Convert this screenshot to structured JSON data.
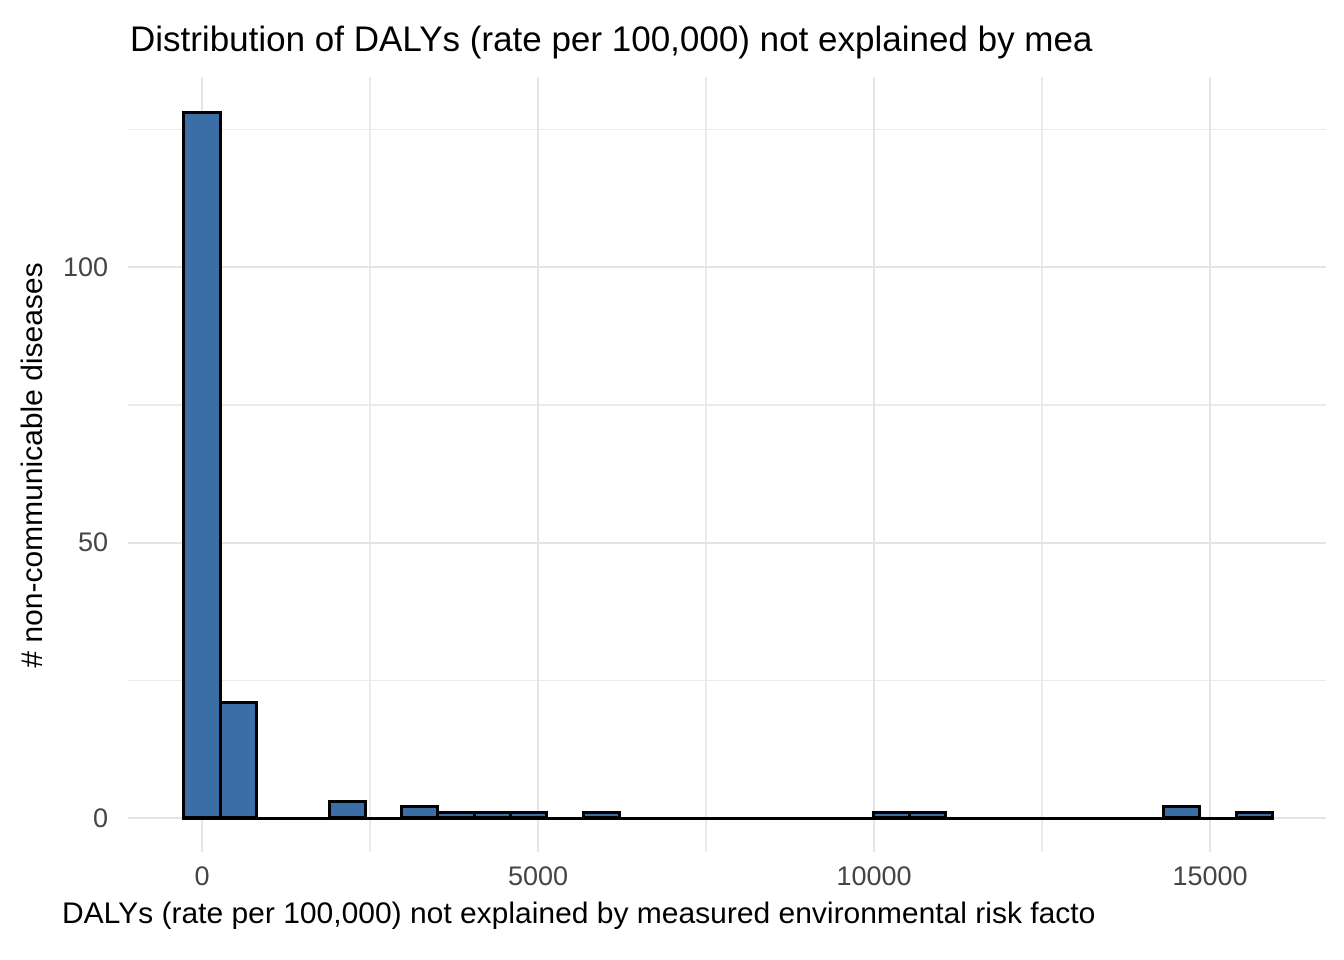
{
  "chart_data": {
    "type": "bar",
    "subtype": "histogram",
    "title": "Distribution of DALYs (rate per 100,000) not explained by mea",
    "xlabel": "DALYs (rate per 100,000) not explained by measured environmental risk facto",
    "ylabel": "# non-communicable diseases",
    "binwidth": 540,
    "bins": [
      {
        "center": 0,
        "count": 128
      },
      {
        "center": 540,
        "count": 21
      },
      {
        "center": 1080,
        "count": 0
      },
      {
        "center": 1620,
        "count": 0
      },
      {
        "center": 2160,
        "count": 3
      },
      {
        "center": 2700,
        "count": 0
      },
      {
        "center": 3240,
        "count": 2
      },
      {
        "center": 3780,
        "count": 1
      },
      {
        "center": 4320,
        "count": 1
      },
      {
        "center": 4860,
        "count": 1
      },
      {
        "center": 5400,
        "count": 0
      },
      {
        "center": 5940,
        "count": 1
      },
      {
        "center": 6480,
        "count": 0
      },
      {
        "center": 7020,
        "count": 0
      },
      {
        "center": 7560,
        "count": 0
      },
      {
        "center": 8100,
        "count": 0
      },
      {
        "center": 8640,
        "count": 0
      },
      {
        "center": 9180,
        "count": 0
      },
      {
        "center": 9720,
        "count": 0
      },
      {
        "center": 10260,
        "count": 1
      },
      {
        "center": 10800,
        "count": 1
      },
      {
        "center": 11340,
        "count": 0
      },
      {
        "center": 11880,
        "count": 0
      },
      {
        "center": 12420,
        "count": 0
      },
      {
        "center": 12960,
        "count": 0
      },
      {
        "center": 13500,
        "count": 0
      },
      {
        "center": 14040,
        "count": 0
      },
      {
        "center": 14580,
        "count": 2
      },
      {
        "center": 15120,
        "count": 0
      },
      {
        "center": 15660,
        "count": 1
      }
    ],
    "x_axis": {
      "tick_values": [
        0,
        5000,
        10000,
        15000
      ],
      "tick_labels": [
        "0",
        "5000",
        "10000",
        "15000"
      ],
      "major_gridlines": [
        0,
        5000,
        10000,
        15000
      ],
      "minor_gridlines": [
        2500,
        7500,
        12500
      ],
      "range_shown": [
        -1100,
        16700
      ]
    },
    "y_axis": {
      "tick_values": [
        0,
        50,
        100
      ],
      "tick_labels": [
        "0",
        "50",
        "100"
      ],
      "major_gridlines": [
        0,
        50,
        100
      ],
      "minor_gridlines": [
        25,
        75,
        125
      ],
      "range_shown": [
        -6,
        134.5
      ]
    },
    "legend": "none",
    "grid": "on",
    "colors": {
      "bar_fill": "#3b6ea5",
      "bar_stroke": "#000000",
      "gridline_major": "#e4e4e4",
      "gridline_minor": "#ebebeb",
      "tick_label": "#454545",
      "title": "#000000",
      "axis_title": "#000000",
      "background": "#ffffff"
    }
  }
}
